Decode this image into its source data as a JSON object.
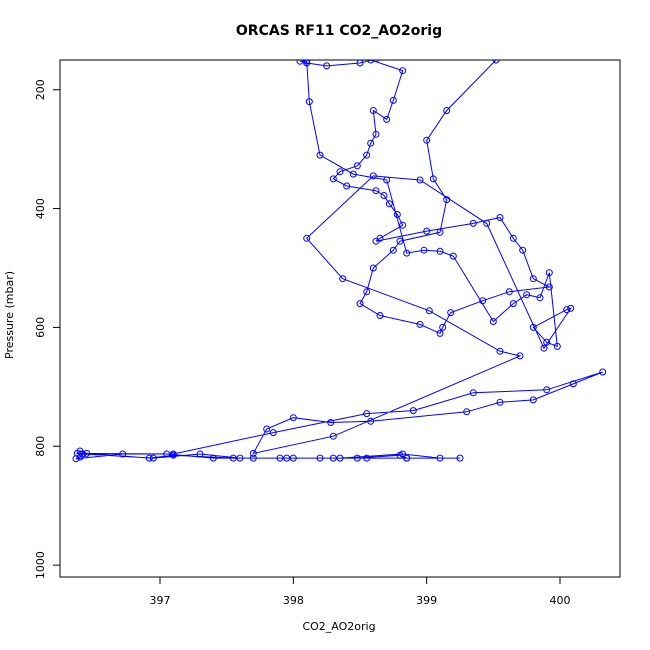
{
  "chart_data": {
    "type": "line",
    "title": "ORCAS RF11 CO2_AO2orig",
    "xlabel": "CO2_AO2orig",
    "ylabel": "Pressure (mbar)",
    "xlim": [
      396.25,
      400.45
    ],
    "ylim": [
      1020,
      150
    ],
    "y_inverted": true,
    "grid": false,
    "line_color": "#0000ff",
    "marker": "open-circle",
    "x_ticks": [
      397,
      398,
      399,
      400
    ],
    "x_tick_labels": [
      "397",
      "398",
      "399",
      "400"
    ],
    "y_ticks": [
      200,
      400,
      600,
      800,
      1000
    ],
    "y_tick_labels": [
      "200",
      "400",
      "600",
      "800",
      "1000"
    ],
    "series": [
      {
        "x": [
          399.25,
          398.85,
          398.8,
          398.48,
          398.2,
          397.9,
          397.6,
          397.3,
          396.95,
          396.42,
          396.4,
          396.37,
          396.72,
          397.05,
          397.4,
          397.7,
          398.0,
          398.35,
          398.82,
          399.1,
          398.85,
          398.55,
          398.3,
          397.95,
          397.55,
          397.1,
          396.92,
          396.45,
          396.4,
          396.38,
          397.1,
          397.85,
          398.55,
          398.9,
          399.35,
          399.9,
          400.32,
          400.1,
          399.8,
          399.55,
          399.3,
          398.58,
          398.28,
          398.0,
          397.8,
          397.7,
          398.3,
          399.7,
          399.55,
          399.02,
          398.37,
          398.1,
          398.6,
          398.95,
          399.45,
          399.88,
          400.08,
          400.05,
          399.8,
          399.9,
          399.98,
          399.92,
          399.85,
          399.75,
          399.65,
          399.5,
          399.2,
          399.1,
          398.98,
          398.85,
          398.7,
          398.45,
          398.2,
          398.12,
          398.1,
          398.05,
          398.1,
          398.25,
          398.5,
          398.62,
          398.58,
          398.82,
          398.75,
          398.7,
          398.6,
          398.62,
          398.58,
          398.55,
          398.48,
          398.35,
          398.3,
          398.4,
          398.62,
          398.68,
          398.72,
          398.78,
          398.82,
          398.65,
          398.62,
          399.0,
          399.35,
          399.55,
          399.65,
          399.72,
          399.8,
          399.92,
          399.62,
          399.42,
          399.18,
          399.12,
          399.1,
          398.95,
          398.65,
          398.5,
          398.55,
          398.6,
          398.75,
          398.8,
          399.1,
          399.15,
          399.05,
          399.0,
          399.15,
          399.52
        ],
        "y": [
          820,
          820,
          815,
          820,
          820,
          820,
          820,
          813,
          820,
          813,
          818,
          821,
          813,
          813,
          820,
          820,
          820,
          820,
          813,
          820,
          820,
          820,
          820,
          820,
          820,
          815,
          820,
          812,
          808,
          812,
          813,
          777,
          745,
          740,
          710,
          705,
          675,
          695,
          722,
          726,
          742,
          758,
          760,
          752,
          771,
          812,
          783,
          648,
          640,
          572,
          518,
          450,
          345,
          352,
          425,
          635,
          568,
          570,
          600,
          625,
          632,
          508,
          550,
          545,
          560,
          590,
          480,
          472,
          470,
          475,
          352,
          342,
          310,
          220,
          152,
          152,
          155,
          160,
          155,
          148,
          150,
          168,
          218,
          250,
          235,
          275,
          290,
          310,
          328,
          338,
          350,
          362,
          370,
          378,
          392,
          410,
          428,
          450,
          455,
          438,
          425,
          415,
          450,
          470,
          518,
          532,
          540,
          555,
          575,
          600,
          610,
          595,
          580,
          560,
          540,
          500,
          470,
          455,
          440,
          385,
          350,
          285,
          235,
          150
        ]
      }
    ]
  }
}
